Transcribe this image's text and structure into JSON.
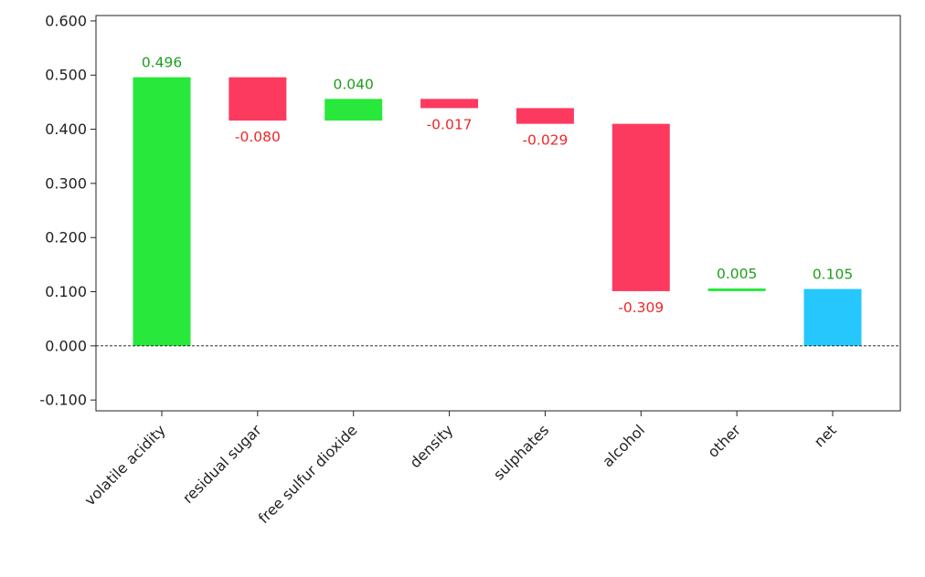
{
  "chart_data": {
    "type": "bar",
    "subtype": "waterfall",
    "categories": [
      "volatile acidity",
      "residual sugar",
      "free sulfur dioxide",
      "density",
      "sulphates",
      "alcohol",
      "other",
      "net"
    ],
    "values": [
      0.496,
      -0.08,
      0.04,
      -0.017,
      -0.029,
      -0.309,
      0.005,
      0.105
    ],
    "value_labels": [
      "0.496",
      "-0.080",
      "0.040",
      "-0.017",
      "-0.029",
      "-0.309",
      "0.005",
      "0.105"
    ],
    "is_total": [
      false,
      false,
      false,
      false,
      false,
      false,
      false,
      true
    ],
    "title": "",
    "xlabel": "",
    "ylabel": "",
    "ylim": [
      -0.12,
      0.61
    ],
    "yticks": [
      -0.1,
      0.0,
      0.1,
      0.2,
      0.3,
      0.4,
      0.5,
      0.6
    ],
    "ytick_labels": [
      "-0.100",
      "0.000",
      "0.100",
      "0.200",
      "0.300",
      "0.400",
      "0.500",
      "0.600"
    ],
    "baseline": 0.0,
    "baseline_style": "dashed",
    "grid": false,
    "legend": "none",
    "colors": {
      "positive": "#27e83b",
      "negative": "#fc3a60",
      "total": "#26c7fc",
      "positive_text": "#1e9e1e",
      "negative_text": "#ee2828",
      "axis": "#222222"
    }
  }
}
